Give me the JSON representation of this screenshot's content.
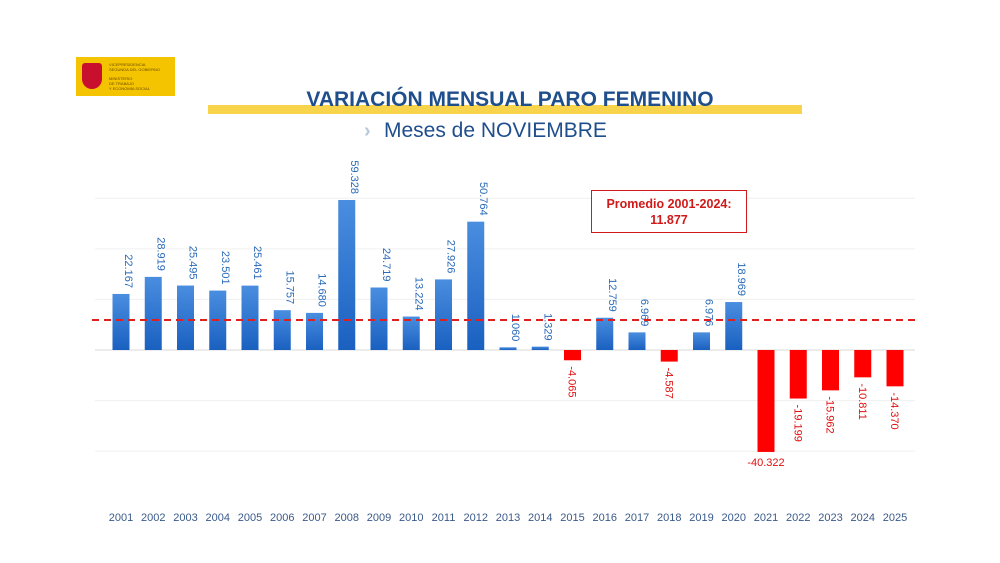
{
  "header": {
    "logo_text": [
      "VICEPRESIDENCIA",
      "SEGUNDA DEL GOBIERNO",
      "",
      "MINISTERIO",
      "DE TRABAJO",
      "Y ECONOMÍA SOCIAL"
    ],
    "title": "VARIACIÓN MENSUAL PARO FEMENINO",
    "subtitle": "Meses de NOVIEMBRE",
    "subtitle_icon": "chevron-right-icon"
  },
  "chart_data": {
    "type": "bar",
    "title": "VARIACIÓN MENSUAL PARO FEMENINO",
    "subtitle": "Meses de NOVIEMBRE",
    "categories": [
      "2001",
      "2002",
      "2003",
      "2004",
      "2005",
      "2006",
      "2007",
      "2008",
      "2009",
      "2010",
      "2011",
      "2012",
      "2013",
      "2014",
      "2015",
      "2016",
      "2017",
      "2018",
      "2019",
      "2020",
      "2021",
      "2022",
      "2023",
      "2024",
      "2025"
    ],
    "values": [
      22167,
      28919,
      25495,
      23501,
      25461,
      15757,
      14680,
      59328,
      24719,
      13224,
      27926,
      50764,
      1060,
      1329,
      -4065,
      12759,
      6969,
      -4587,
      6976,
      18969,
      -40322,
      -19199,
      -15962,
      -10811,
      -14370
    ],
    "data_labels": [
      "22.167",
      "28.919",
      "25.495",
      "23.501",
      "25.461",
      "15.757",
      "14.680",
      "59.328",
      "24.719",
      "13.224",
      "27.926",
      "50.764",
      "1.060",
      "1.329",
      "-4.065",
      "12.759",
      "6.969",
      "-4.587",
      "6.976",
      "18.969",
      "-40.322",
      "-19.199",
      "-15.962",
      "-10.811",
      "-14.370"
    ],
    "reference_line": {
      "label": "Promedio 2001-2024:",
      "value_label": "11.877",
      "value": 11877,
      "style": "dashed",
      "color": "#e02020"
    },
    "colors": {
      "positive": "#1f6fd0",
      "negative": "#ff0000",
      "positive_label": "#2a6ab8",
      "negative_label": "#e01010"
    },
    "ylim": [
      -60000,
      60000
    ],
    "grid": true,
    "xlabel": "",
    "ylabel": ""
  }
}
